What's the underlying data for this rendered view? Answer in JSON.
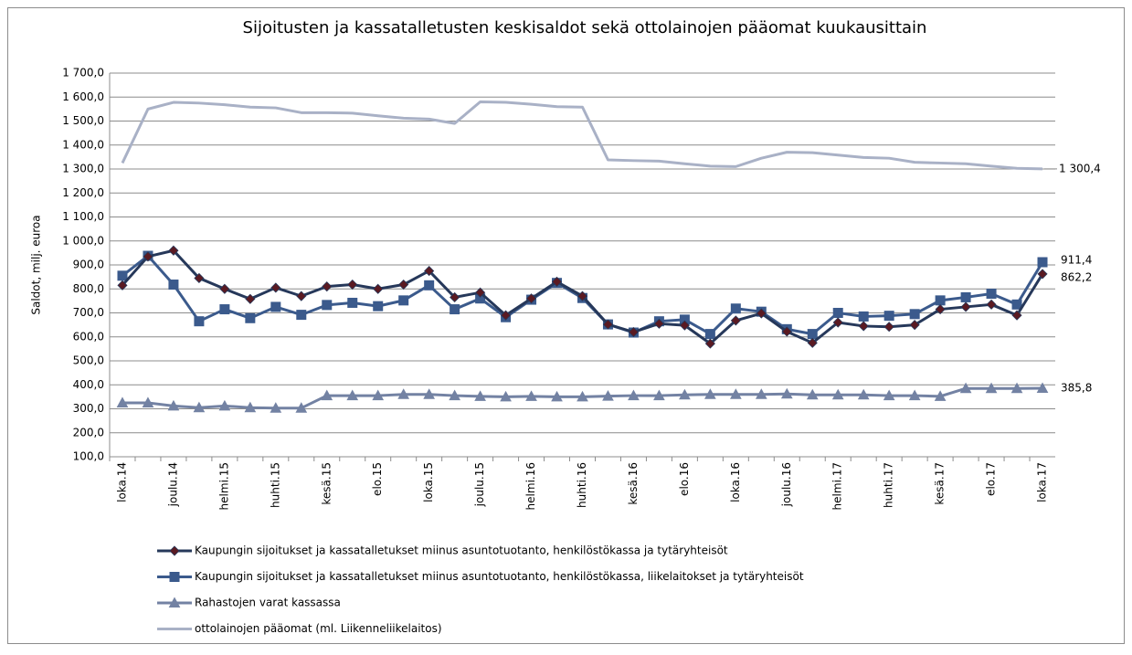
{
  "chart_data": {
    "type": "line",
    "title": "Sijoitusten ja kassatalletusten keskisaldot sekä ottolainojen pääomat kuukausittain",
    "y_label": "Saldot, milj. euroa",
    "categories": [
      "loka.14",
      null,
      "joulu.14",
      null,
      "helmi.15",
      null,
      "huhti.15",
      null,
      "kesä.15",
      null,
      "elo.15",
      null,
      "loka.15",
      null,
      "joulu.15",
      null,
      "helmi.16",
      null,
      "huhti.16",
      null,
      "kesä.16",
      null,
      "elo.16",
      null,
      "loka.16",
      null,
      "joulu.16",
      null,
      "helmi.17",
      null,
      "huhti.17",
      null,
      "kesä.17",
      null,
      "elo.17",
      null,
      "loka.17"
    ],
    "ylim": [
      100,
      1700
    ],
    "yticks": [
      {
        "value": 100,
        "label": "100,0"
      },
      {
        "value": 200,
        "label": "200,0"
      },
      {
        "value": 300,
        "label": "300,0"
      },
      {
        "value": 400,
        "label": "400,0"
      },
      {
        "value": 500,
        "label": "500,0"
      },
      {
        "value": 600,
        "label": "600,0"
      },
      {
        "value": 700,
        "label": "700,0"
      },
      {
        "value": 800,
        "label": "800,0"
      },
      {
        "value": 900,
        "label": "900,0"
      },
      {
        "value": 1000,
        "label": "1 000,0"
      },
      {
        "value": 1100,
        "label": "1 100,0"
      },
      {
        "value": 1200,
        "label": "1 200,0"
      },
      {
        "value": 1300,
        "label": "1 300,0"
      },
      {
        "value": 1400,
        "label": "1 400,0"
      },
      {
        "value": 1500,
        "label": "1 500,0"
      },
      {
        "value": 1600,
        "label": "1 600,0"
      },
      {
        "value": 1700,
        "label": "1 700,0"
      }
    ],
    "grid": true,
    "legend": "bottom",
    "series": [
      {
        "name": "Kaupungin sijoitukset ja kassatalletukset miinus asuntotuotanto, henkilöstökassa ja tytäryhteisöt",
        "color": "#26385a",
        "marker": "diamond",
        "marker_color": "#5a1a22",
        "last_label": "862,2",
        "values": [
          815,
          935,
          960,
          845,
          800,
          758,
          805,
          770,
          810,
          818,
          800,
          818,
          875,
          765,
          785,
          690,
          760,
          830,
          770,
          652,
          620,
          655,
          648,
          572,
          668,
          698,
          622,
          575,
          660,
          645,
          642,
          650,
          715,
          725,
          735,
          690,
          862.2
        ]
      },
      {
        "name": "Kaupungin sijoitukset ja kassatalletukset miinus asuntotuotanto, henkilöstökassa, liikelaitokset ja tytäryhteisöt",
        "color": "#3b5a8c",
        "marker": "square",
        "marker_color": "#3b5a8c",
        "last_label": "911,4",
        "values": [
          855,
          938,
          818,
          665,
          715,
          678,
          725,
          692,
          733,
          742,
          728,
          752,
          815,
          715,
          760,
          682,
          755,
          825,
          762,
          652,
          618,
          665,
          672,
          612,
          718,
          705,
          632,
          612,
          700,
          685,
          688,
          695,
          752,
          765,
          780,
          735,
          911.4
        ]
      },
      {
        "name": "Rahastojen varat kassassa",
        "color": "#7382a3",
        "marker": "triangle",
        "marker_color": "#7382a3",
        "last_label": "385,8",
        "values": [
          325,
          325,
          312,
          305,
          312,
          305,
          303,
          303,
          355,
          355,
          355,
          360,
          360,
          355,
          352,
          350,
          352,
          350,
          350,
          353,
          355,
          355,
          358,
          360,
          360,
          360,
          362,
          358,
          358,
          358,
          355,
          355,
          352,
          385,
          385,
          385,
          385.8
        ]
      },
      {
        "name": "ottolainojen pääomat (ml. Liikenneliikelaitos)",
        "color": "#a9b1c6",
        "marker": null,
        "marker_color": null,
        "last_label": "1 300,4",
        "values": [
          1325,
          1550,
          1578,
          1575,
          1568,
          1558,
          1555,
          1535,
          1535,
          1533,
          1522,
          1512,
          1508,
          1490,
          1580,
          1578,
          1570,
          1560,
          1558,
          1338,
          1335,
          1333,
          1322,
          1312,
          1310,
          1345,
          1370,
          1368,
          1358,
          1348,
          1345,
          1328,
          1325,
          1322,
          1312,
          1303,
          1300.4
        ]
      }
    ]
  }
}
